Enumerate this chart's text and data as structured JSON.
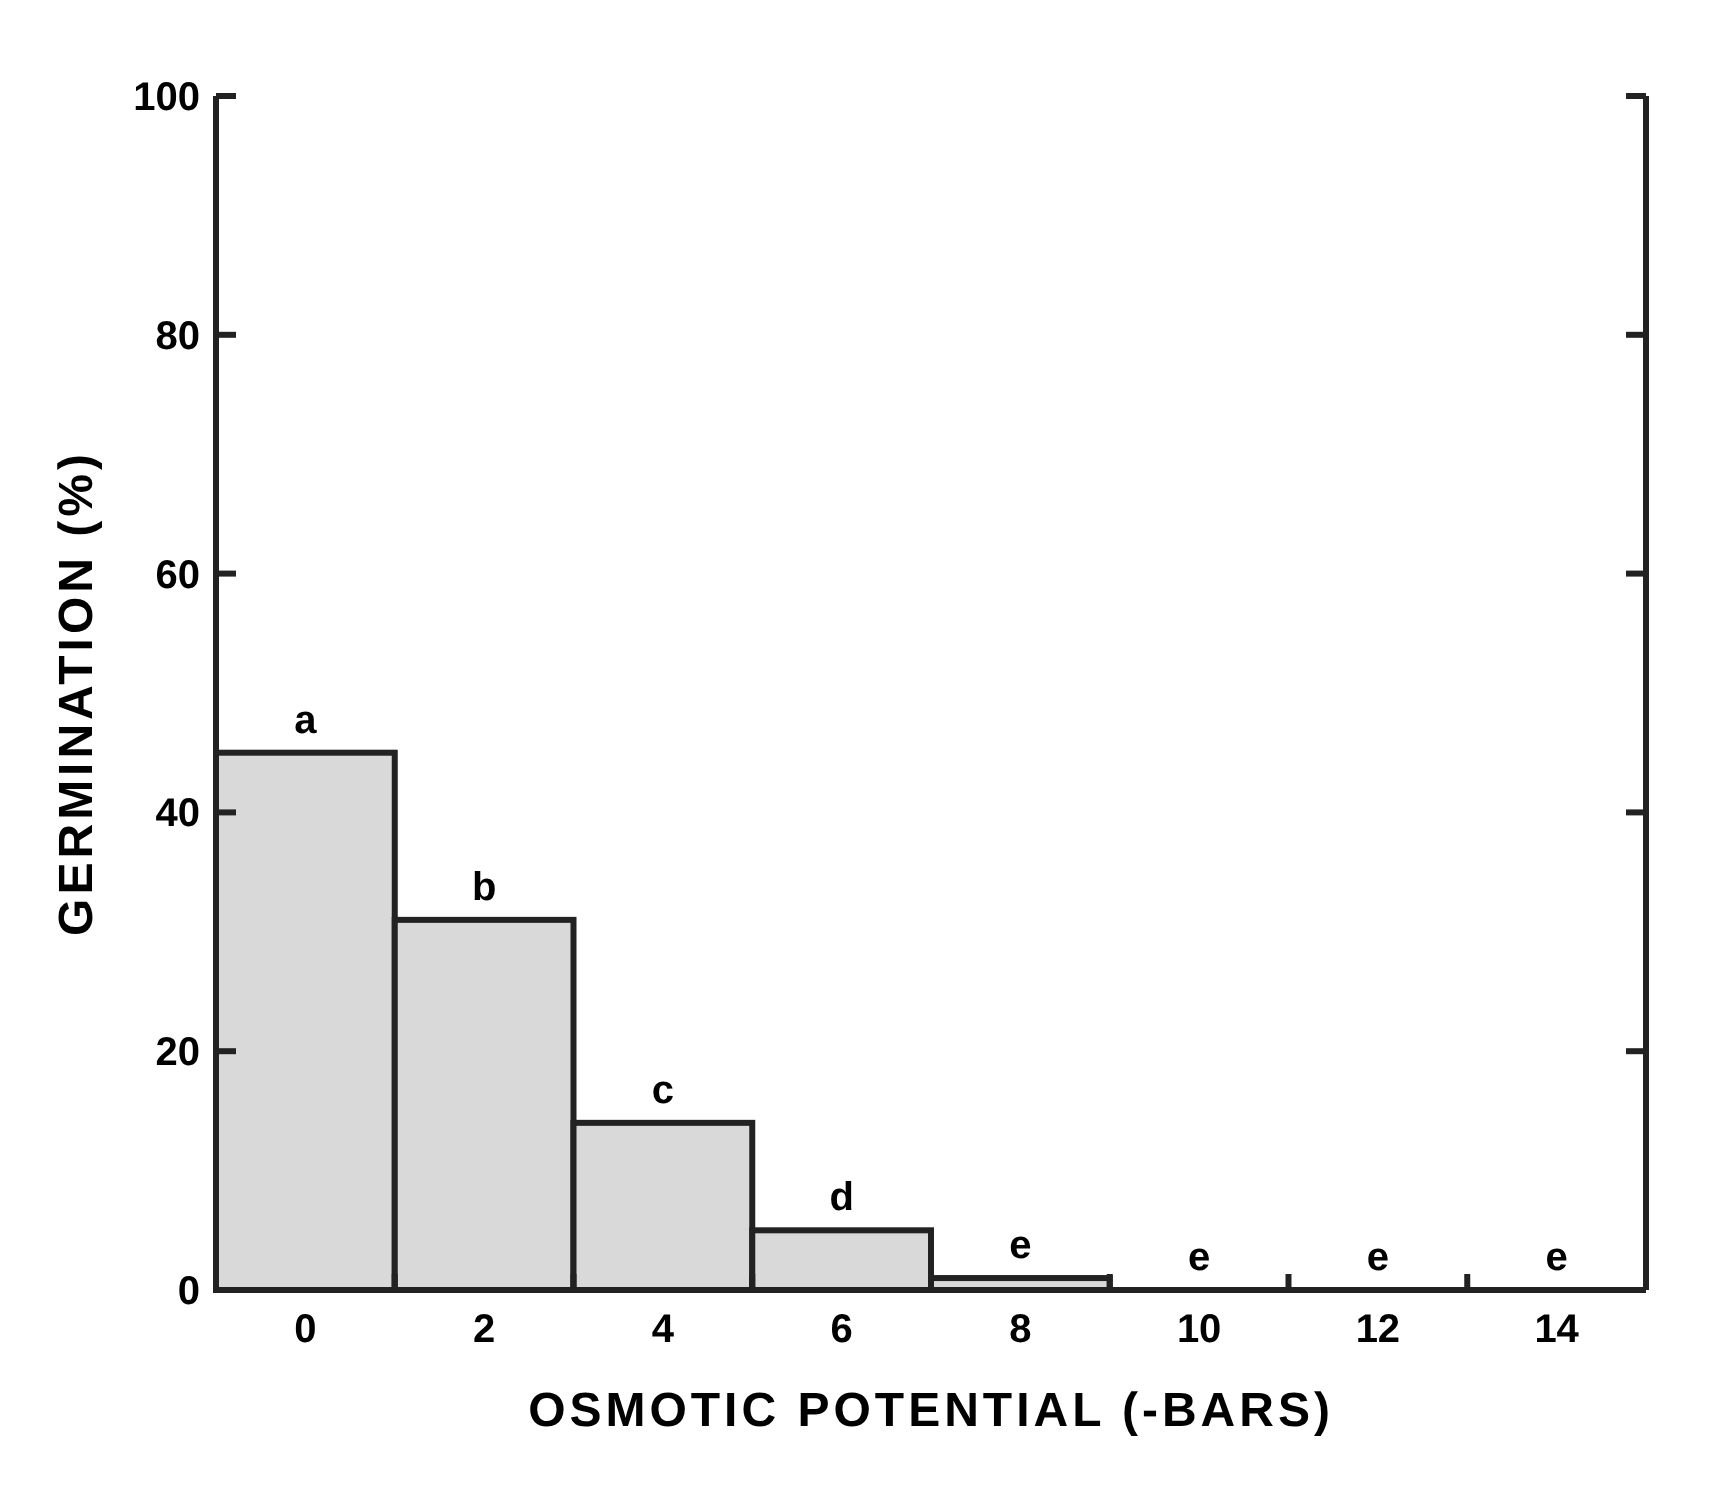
{
  "chart_data": {
    "type": "bar",
    "xlabel": "OSMOTIC POTENTIAL (-BARS)",
    "ylabel": "GERMINATION (%)",
    "categories": [
      "0",
      "2",
      "4",
      "6",
      "8",
      "10",
      "12",
      "14"
    ],
    "values": [
      45,
      31,
      14,
      5,
      1,
      0,
      0,
      0
    ],
    "color": "#d9d9d9",
    "ylim": [
      0,
      100
    ],
    "yticks": [
      0,
      20,
      40,
      60,
      80,
      100
    ],
    "grid": false,
    "annotations": [
      {
        "text": "a",
        "x": "0",
        "y": 45
      },
      {
        "text": "b",
        "x": "2",
        "y": 31
      },
      {
        "text": "c",
        "x": "4",
        "y": 14
      },
      {
        "text": "d",
        "x": "6",
        "y": 5
      },
      {
        "text": "e",
        "x": "8",
        "y": 1
      },
      {
        "text": "e",
        "x": "10",
        "y": 0
      },
      {
        "text": "e",
        "x": "12",
        "y": 0
      },
      {
        "text": "e",
        "x": "14",
        "y": 0
      }
    ]
  }
}
